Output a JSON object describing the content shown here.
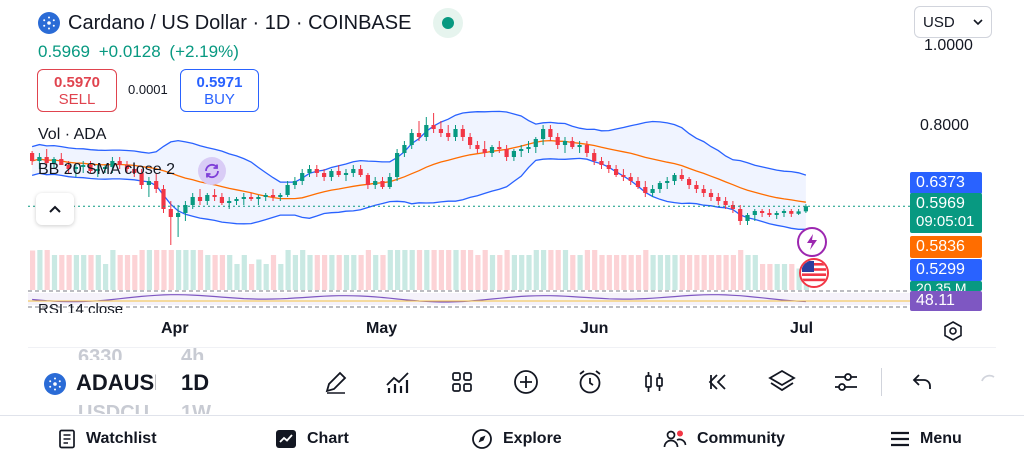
{
  "header": {
    "title": "Cardano / US Dollar · 1D · COINBASE",
    "currency": "USD"
  },
  "quote": {
    "last": "0.5969",
    "change": "+0.0128",
    "change_pct": "(+2.19%)"
  },
  "trade": {
    "sell_price": "0.5970",
    "sell_label": "SELL",
    "spread": "0.0001",
    "buy_price": "0.5971",
    "buy_label": "BUY"
  },
  "legends": {
    "volume": "Vol · ADA",
    "bollinger": "BB 20 SMA close 2",
    "rsi": "RSI 14 close"
  },
  "price_axis": {
    "ticks": [
      "1.0000",
      "0.8000"
    ]
  },
  "price_tags": {
    "bb_upper": "0.6373",
    "last": "0.5969",
    "countdown": "09:05:01",
    "bb_basis": "0.5836",
    "bb_lower": "0.5299",
    "volume_partial": "20.35 M",
    "rsi": "48.11"
  },
  "time_axis": [
    "Apr",
    "May",
    "Jun",
    "Jul"
  ],
  "colors": {
    "up": "#089981",
    "down": "#f23645",
    "bb_band": "#2962ff",
    "bb_basis": "#ff6d00",
    "rsi": "#7e57c2",
    "accent": "#2962ff"
  },
  "toolbar": {
    "symbol": "ADAUSD",
    "interval": "1D",
    "ghost_prev_symbol": "6330",
    "ghost_prev_interval": "4h",
    "ghost_next_symbol": "USDCU",
    "ghost_next_interval": "1W",
    "tools": [
      "pencil-icon",
      "indicators-icon",
      "grid-icon",
      "plus-circle-icon",
      "alarm-icon",
      "candles-icon",
      "rewind-icon",
      "layers-icon",
      "sliders-icon",
      "undo-icon"
    ]
  },
  "nav": {
    "watchlist": "Watchlist",
    "chart": "Chart",
    "explore": "Explore",
    "community": "Community",
    "menu": "Menu"
  },
  "chart_data": {
    "type": "candlestick",
    "symbol": "ADAUSD",
    "interval": "1D",
    "x_ticks": [
      "Apr",
      "May",
      "Jun",
      "Jul"
    ],
    "y_ticks": [
      1.0,
      0.8
    ],
    "last_price": 0.5969,
    "candles": [
      [
        0.73,
        0.735,
        0.7,
        0.71
      ],
      [
        0.71,
        0.73,
        0.69,
        0.72
      ],
      [
        0.72,
        0.74,
        0.7,
        0.705
      ],
      [
        0.705,
        0.72,
        0.69,
        0.715
      ],
      [
        0.715,
        0.73,
        0.7,
        0.7
      ],
      [
        0.7,
        0.71,
        0.68,
        0.69
      ],
      [
        0.69,
        0.7,
        0.67,
        0.695
      ],
      [
        0.695,
        0.71,
        0.68,
        0.7
      ],
      [
        0.7,
        0.71,
        0.68,
        0.685
      ],
      [
        0.685,
        0.7,
        0.67,
        0.69
      ],
      [
        0.69,
        0.7,
        0.68,
        0.695
      ],
      [
        0.695,
        0.72,
        0.68,
        0.71
      ],
      [
        0.71,
        0.72,
        0.69,
        0.7
      ],
      [
        0.7,
        0.71,
        0.68,
        0.69
      ],
      [
        0.69,
        0.7,
        0.67,
        0.68
      ],
      [
        0.68,
        0.69,
        0.64,
        0.65
      ],
      [
        0.65,
        0.67,
        0.62,
        0.66
      ],
      [
        0.66,
        0.68,
        0.63,
        0.64
      ],
      [
        0.64,
        0.65,
        0.58,
        0.59
      ],
      [
        0.59,
        0.61,
        0.5,
        0.57
      ],
      [
        0.57,
        0.6,
        0.52,
        0.58
      ],
      [
        0.58,
        0.61,
        0.56,
        0.6
      ],
      [
        0.6,
        0.63,
        0.59,
        0.62
      ],
      [
        0.62,
        0.64,
        0.6,
        0.61
      ],
      [
        0.61,
        0.63,
        0.6,
        0.625
      ],
      [
        0.625,
        0.64,
        0.61,
        0.62
      ],
      [
        0.62,
        0.63,
        0.6,
        0.605
      ],
      [
        0.605,
        0.62,
        0.59,
        0.61
      ],
      [
        0.61,
        0.62,
        0.6,
        0.615
      ],
      [
        0.615,
        0.63,
        0.6,
        0.62
      ],
      [
        0.62,
        0.63,
        0.61,
        0.615
      ],
      [
        0.615,
        0.625,
        0.6,
        0.62
      ],
      [
        0.62,
        0.63,
        0.61,
        0.625
      ],
      [
        0.625,
        0.64,
        0.61,
        0.62
      ],
      [
        0.62,
        0.63,
        0.61,
        0.625
      ],
      [
        0.625,
        0.66,
        0.62,
        0.65
      ],
      [
        0.65,
        0.67,
        0.64,
        0.66
      ],
      [
        0.66,
        0.69,
        0.65,
        0.68
      ],
      [
        0.68,
        0.7,
        0.67,
        0.69
      ],
      [
        0.69,
        0.7,
        0.67,
        0.68
      ],
      [
        0.68,
        0.69,
        0.66,
        0.67
      ],
      [
        0.67,
        0.69,
        0.66,
        0.685
      ],
      [
        0.685,
        0.7,
        0.67,
        0.675
      ],
      [
        0.675,
        0.69,
        0.66,
        0.68
      ],
      [
        0.68,
        0.7,
        0.67,
        0.69
      ],
      [
        0.69,
        0.7,
        0.67,
        0.675
      ],
      [
        0.675,
        0.68,
        0.64,
        0.65
      ],
      [
        0.65,
        0.67,
        0.64,
        0.66
      ],
      [
        0.66,
        0.67,
        0.64,
        0.645
      ],
      [
        0.645,
        0.68,
        0.64,
        0.67
      ],
      [
        0.67,
        0.74,
        0.66,
        0.73
      ],
      [
        0.73,
        0.76,
        0.72,
        0.75
      ],
      [
        0.75,
        0.79,
        0.74,
        0.78
      ],
      [
        0.78,
        0.81,
        0.76,
        0.77
      ],
      [
        0.77,
        0.82,
        0.76,
        0.8
      ],
      [
        0.8,
        0.83,
        0.78,
        0.79
      ],
      [
        0.79,
        0.81,
        0.77,
        0.78
      ],
      [
        0.78,
        0.8,
        0.76,
        0.77
      ],
      [
        0.77,
        0.8,
        0.76,
        0.79
      ],
      [
        0.79,
        0.8,
        0.76,
        0.77
      ],
      [
        0.77,
        0.78,
        0.74,
        0.75
      ],
      [
        0.75,
        0.76,
        0.73,
        0.74
      ],
      [
        0.74,
        0.76,
        0.72,
        0.73
      ],
      [
        0.73,
        0.75,
        0.72,
        0.745
      ],
      [
        0.745,
        0.76,
        0.73,
        0.74
      ],
      [
        0.74,
        0.75,
        0.71,
        0.72
      ],
      [
        0.72,
        0.74,
        0.71,
        0.735
      ],
      [
        0.735,
        0.75,
        0.72,
        0.74
      ],
      [
        0.74,
        0.76,
        0.73,
        0.745
      ],
      [
        0.745,
        0.77,
        0.73,
        0.765
      ],
      [
        0.765,
        0.8,
        0.75,
        0.79
      ],
      [
        0.79,
        0.8,
        0.76,
        0.77
      ],
      [
        0.77,
        0.78,
        0.74,
        0.75
      ],
      [
        0.75,
        0.77,
        0.73,
        0.76
      ],
      [
        0.76,
        0.77,
        0.74,
        0.745
      ],
      [
        0.745,
        0.76,
        0.73,
        0.75
      ],
      [
        0.75,
        0.76,
        0.72,
        0.73
      ],
      [
        0.73,
        0.74,
        0.7,
        0.71
      ],
      [
        0.71,
        0.72,
        0.69,
        0.7
      ],
      [
        0.7,
        0.71,
        0.68,
        0.69
      ],
      [
        0.69,
        0.7,
        0.67,
        0.675
      ],
      [
        0.675,
        0.69,
        0.66,
        0.67
      ],
      [
        0.67,
        0.68,
        0.65,
        0.66
      ],
      [
        0.66,
        0.67,
        0.64,
        0.645
      ],
      [
        0.645,
        0.66,
        0.62,
        0.63
      ],
      [
        0.63,
        0.65,
        0.62,
        0.64
      ],
      [
        0.64,
        0.66,
        0.63,
        0.655
      ],
      [
        0.655,
        0.67,
        0.64,
        0.66
      ],
      [
        0.66,
        0.68,
        0.65,
        0.675
      ],
      [
        0.675,
        0.69,
        0.66,
        0.665
      ],
      [
        0.665,
        0.67,
        0.64,
        0.65
      ],
      [
        0.65,
        0.66,
        0.63,
        0.64
      ],
      [
        0.64,
        0.65,
        0.62,
        0.63
      ],
      [
        0.63,
        0.64,
        0.61,
        0.62
      ],
      [
        0.62,
        0.63,
        0.6,
        0.61
      ],
      [
        0.61,
        0.62,
        0.59,
        0.6
      ],
      [
        0.6,
        0.61,
        0.58,
        0.59
      ],
      [
        0.59,
        0.6,
        0.55,
        0.56
      ],
      [
        0.56,
        0.58,
        0.55,
        0.575
      ],
      [
        0.575,
        0.59,
        0.56,
        0.585
      ],
      [
        0.585,
        0.59,
        0.57,
        0.58
      ],
      [
        0.58,
        0.59,
        0.57,
        0.575
      ],
      [
        0.575,
        0.585,
        0.565,
        0.58
      ],
      [
        0.58,
        0.59,
        0.57,
        0.585
      ],
      [
        0.585,
        0.59,
        0.57,
        0.578
      ],
      [
        0.578,
        0.59,
        0.575,
        0.5841
      ],
      [
        0.5841,
        0.602,
        0.58,
        0.5969
      ]
    ],
    "bollinger": {
      "period": 20,
      "stddev": 2,
      "upper_last": 0.6373,
      "basis_last": 0.5836,
      "lower_last": 0.5299
    },
    "rsi": {
      "period": 14,
      "last": 48.11
    }
  }
}
